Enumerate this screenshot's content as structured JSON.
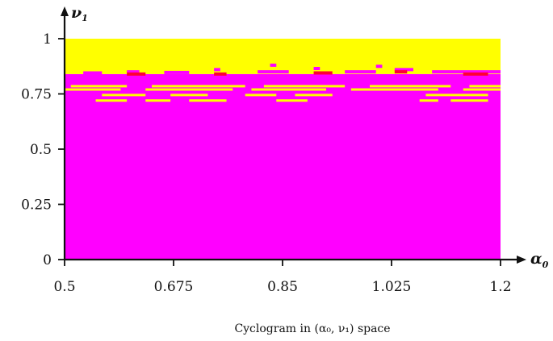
{
  "chart_data": {
    "type": "heatmap",
    "caption": "Cyclogram in (α₀, ν₁) space",
    "xlabel": "α",
    "xlabel_sub": "0",
    "ylabel": "ν",
    "ylabel_sub": "1",
    "xlim": [
      0.5,
      1.2
    ],
    "ylim": [
      0,
      1
    ],
    "x_ticks": [
      {
        "value": 0.5,
        "label": "0.5"
      },
      {
        "value": 0.675,
        "label": "0.675"
      },
      {
        "value": 0.85,
        "label": "0.85"
      },
      {
        "value": 1.025,
        "label": "1.025"
      },
      {
        "value": 1.2,
        "label": "1.2"
      }
    ],
    "y_ticks": [
      {
        "value": 0,
        "label": "0"
      },
      {
        "value": 0.25,
        "label": "0.25"
      },
      {
        "value": 0.5,
        "label": "0.5"
      },
      {
        "value": 0.75,
        "label": "0.75"
      },
      {
        "value": 1,
        "label": "1"
      }
    ],
    "colors": {
      "magenta": "#ff00ff",
      "yellow": "#ffff00",
      "red": "#ff0033",
      "axis": "#111111"
    },
    "regions": [
      {
        "color": "magenta",
        "y_from": 0,
        "y_to": 0.84
      },
      {
        "color": "yellow",
        "y_from": 0.84,
        "y_to": 1
      }
    ],
    "boundary_segments": [
      {
        "color": "magenta",
        "y": 0.825,
        "x_from": 0.5,
        "x_to": 1.2
      },
      {
        "color": "magenta",
        "y": 0.845,
        "x_from": 0.53,
        "x_to": 0.56
      },
      {
        "color": "magenta",
        "y": 0.85,
        "x_from": 0.6,
        "x_to": 0.62
      },
      {
        "color": "magenta",
        "y": 0.847,
        "x_from": 0.66,
        "x_to": 0.7
      },
      {
        "color": "magenta",
        "y": 0.86,
        "x_from": 0.74,
        "x_to": 0.75
      },
      {
        "color": "magenta",
        "y": 0.85,
        "x_from": 0.81,
        "x_to": 0.86
      },
      {
        "color": "magenta",
        "y": 0.865,
        "x_from": 0.9,
        "x_to": 0.91
      },
      {
        "color": "magenta",
        "y": 0.85,
        "x_from": 0.95,
        "x_to": 1.0
      },
      {
        "color": "magenta",
        "y": 0.86,
        "x_from": 1.03,
        "x_to": 1.06
      },
      {
        "color": "magenta",
        "y": 0.85,
        "x_from": 1.09,
        "x_to": 1.2
      },
      {
        "color": "magenta",
        "y": 0.875,
        "x_from": 1.0,
        "x_to": 1.01
      },
      {
        "color": "magenta",
        "y": 0.88,
        "x_from": 0.83,
        "x_to": 0.84
      },
      {
        "color": "red",
        "y": 0.84,
        "x_from": 0.6,
        "x_to": 0.63
      },
      {
        "color": "red",
        "y": 0.84,
        "x_from": 0.74,
        "x_to": 0.76
      },
      {
        "color": "red",
        "y": 0.845,
        "x_from": 0.9,
        "x_to": 0.93
      },
      {
        "color": "red",
        "y": 0.84,
        "x_from": 1.14,
        "x_to": 1.18
      },
      {
        "color": "red",
        "y": 0.85,
        "x_from": 1.03,
        "x_to": 1.05
      }
    ],
    "yellow_stripes": [
      {
        "y": 0.785,
        "x_from": 0.51,
        "x_to": 0.6
      },
      {
        "y": 0.785,
        "x_from": 0.64,
        "x_to": 0.79
      },
      {
        "y": 0.785,
        "x_from": 0.82,
        "x_to": 0.95
      },
      {
        "y": 0.785,
        "x_from": 0.99,
        "x_to": 1.12
      },
      {
        "y": 0.785,
        "x_from": 1.15,
        "x_to": 1.2
      },
      {
        "y": 0.77,
        "x_from": 0.5,
        "x_to": 0.59
      },
      {
        "y": 0.77,
        "x_from": 0.63,
        "x_to": 0.77
      },
      {
        "y": 0.77,
        "x_from": 0.8,
        "x_to": 0.92
      },
      {
        "y": 0.77,
        "x_from": 0.96,
        "x_to": 1.1
      },
      {
        "y": 0.77,
        "x_from": 1.14,
        "x_to": 1.2
      },
      {
        "y": 0.745,
        "x_from": 0.56,
        "x_to": 0.63
      },
      {
        "y": 0.745,
        "x_from": 0.67,
        "x_to": 0.73
      },
      {
        "y": 0.745,
        "x_from": 0.79,
        "x_to": 0.84
      },
      {
        "y": 0.745,
        "x_from": 0.87,
        "x_to": 0.93
      },
      {
        "y": 0.745,
        "x_from": 1.08,
        "x_to": 1.18
      },
      {
        "y": 0.72,
        "x_from": 0.55,
        "x_to": 0.6
      },
      {
        "y": 0.72,
        "x_from": 0.63,
        "x_to": 0.67
      },
      {
        "y": 0.72,
        "x_from": 0.7,
        "x_to": 0.76
      },
      {
        "y": 0.72,
        "x_from": 0.84,
        "x_to": 0.89
      },
      {
        "y": 0.72,
        "x_from": 1.07,
        "x_to": 1.1
      },
      {
        "y": 0.72,
        "x_from": 1.12,
        "x_to": 1.18
      }
    ]
  }
}
